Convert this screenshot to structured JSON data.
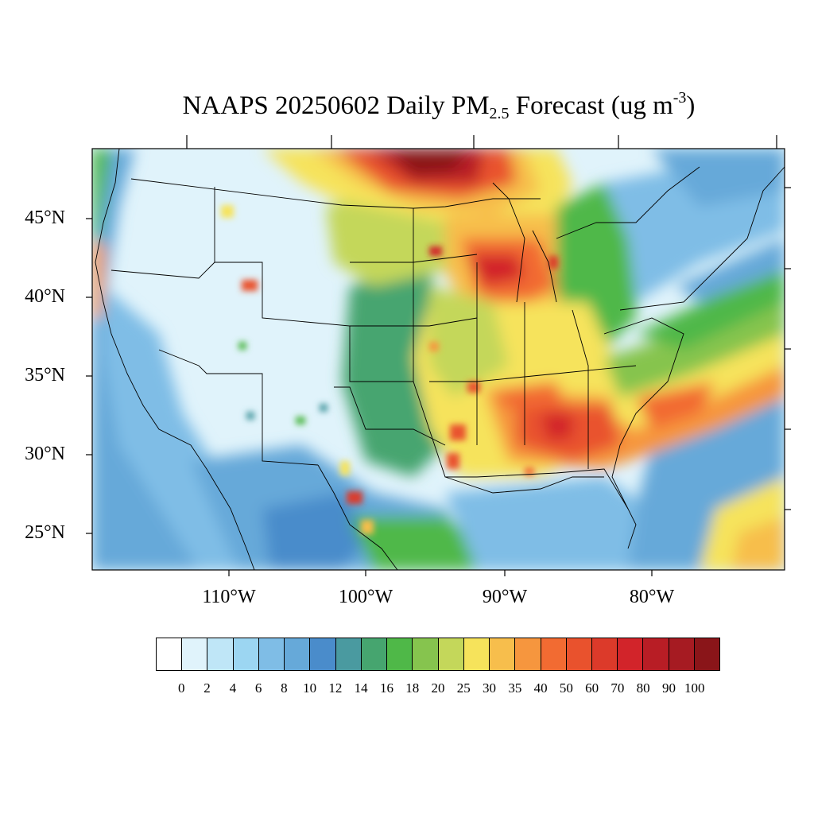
{
  "title": {
    "main": "NAAPS 20250602 Daily PM",
    "sub": "2.5",
    "units": " Forecast (ug m",
    "sup": "-3",
    "close": ")"
  },
  "axes": {
    "lat_labels": [
      "45°N",
      "40°N",
      "35°N",
      "30°N",
      "25°N"
    ],
    "lon_labels": [
      "110°W",
      "100°W",
      "90°W",
      "80°W"
    ]
  },
  "colorbar": {
    "ticks": [
      "0",
      "2",
      "4",
      "6",
      "8",
      "10",
      "12",
      "14",
      "16",
      "18",
      "20",
      "25",
      "30",
      "35",
      "40",
      "50",
      "60",
      "70",
      "80",
      "90",
      "100"
    ],
    "colors": [
      "#ffffff",
      "#e0f3fb",
      "#bfe6f7",
      "#9cd6f2",
      "#7fbde6",
      "#66a9d9",
      "#4a8ccb",
      "#4a9aa0",
      "#46a56f",
      "#4fb848",
      "#86c44e",
      "#c4d75a",
      "#f6e35b",
      "#f7be4c",
      "#f6963e",
      "#f26b32",
      "#e9522d",
      "#dc3a2a",
      "#d2242a",
      "#b81d25",
      "#a61b22",
      "#8a1519"
    ]
  },
  "map": {
    "background_color": "#e0f3fb",
    "description_colors": {
      "coast": "#000000"
    }
  }
}
